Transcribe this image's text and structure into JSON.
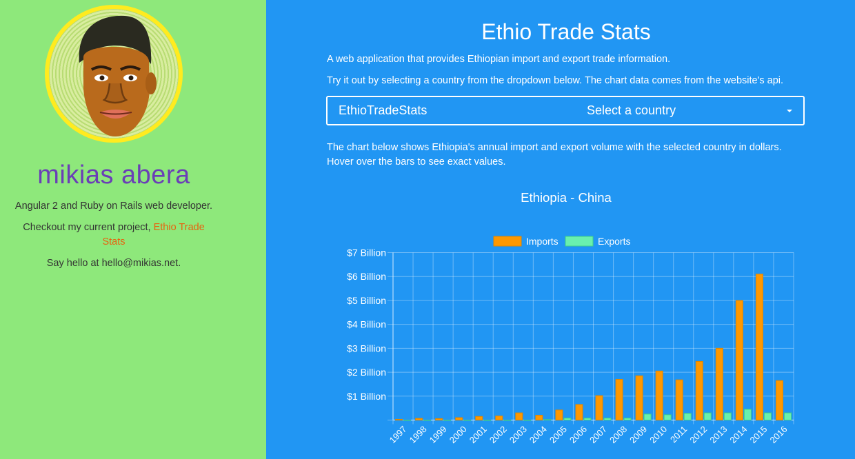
{
  "sidebar": {
    "name": "mikias abera",
    "tagline": "Angular 2 and Ruby on Rails web developer.",
    "project_prefix": "Checkout my current project, ",
    "project_link": "Ethio Trade Stats",
    "contact": "Say hello at hello@mikias.net."
  },
  "main": {
    "title": "Ethio Trade Stats",
    "intro": "A web application that provides Ethiopian import and export trade information.",
    "instructions": "Try it out by selecting a country from the dropdown below. The chart data comes from the website's api.",
    "select": {
      "brand": "EthioTradeStats",
      "placeholder": "Select a country"
    },
    "description": "The chart below shows Ethiopia's annual import and export volume with the selected country in dollars. Hover over the bars to see exact values."
  },
  "colors": {
    "sidebar": "#8ee87b",
    "main": "#2196f3",
    "imports": "#ff9800",
    "exports": "#69f0ae"
  },
  "chart_data": {
    "type": "bar",
    "title": "Ethiopia - China",
    "categories": [
      "1997",
      "1998",
      "1999",
      "2000",
      "2001",
      "2002",
      "2003",
      "2004",
      "2005",
      "2006",
      "2007",
      "2008",
      "2009",
      "2010",
      "2011",
      "2012",
      "2013",
      "2014",
      "2015",
      "2016"
    ],
    "series": [
      {
        "name": "Imports",
        "values": [
          0.03,
          0.07,
          0.06,
          0.1,
          0.15,
          0.17,
          0.3,
          0.2,
          0.42,
          0.65,
          1.02,
          1.7,
          1.85,
          2.05,
          1.68,
          2.45,
          3.0,
          5.0,
          6.1,
          1.65
        ]
      },
      {
        "name": "Exports",
        "values": [
          0.0,
          0.0,
          0.0,
          0.0,
          0.0,
          0.0,
          0.0,
          0.02,
          0.08,
          0.08,
          0.08,
          0.08,
          0.25,
          0.22,
          0.28,
          0.3,
          0.3,
          0.45,
          0.3,
          0.3
        ]
      }
    ],
    "ytick_labels": [
      "$1 Billion",
      "$2 Billion",
      "$3 Billion",
      "$4 Billion",
      "$5 Billion",
      "$6 Billion",
      "$7 Billion"
    ],
    "ylim": [
      0,
      7
    ],
    "legend": "top",
    "grid": true
  }
}
